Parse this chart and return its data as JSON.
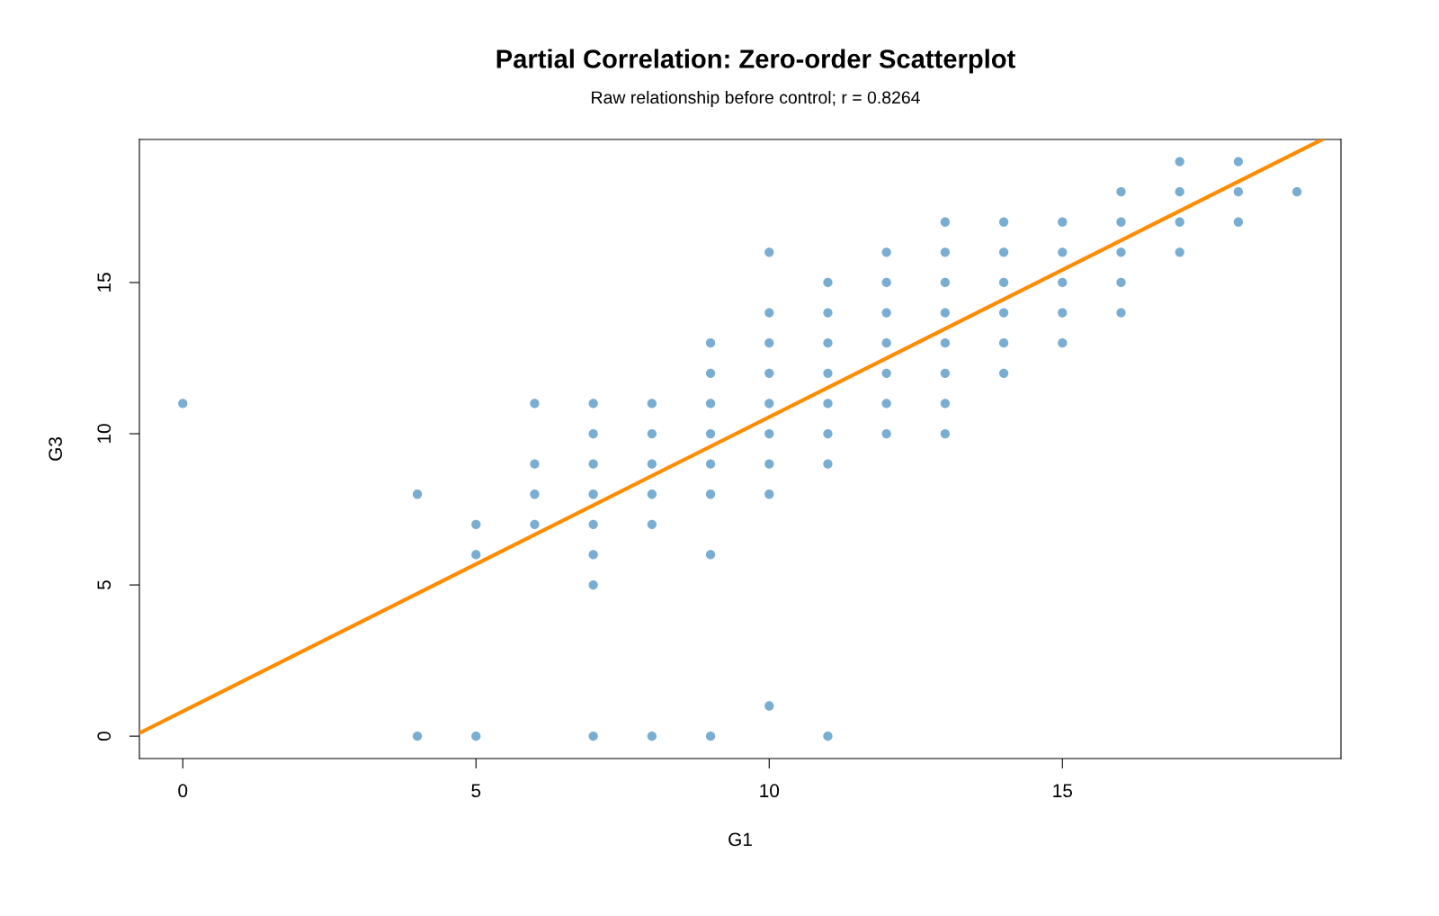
{
  "chart_data": {
    "type": "scatter",
    "title": "Partial Correlation: Zero-order Scatterplot",
    "subtitle": "Raw relationship before control; r = 0.8264",
    "xlabel": "G1",
    "ylabel": "G3",
    "xlim": [
      -0.74,
      19.75
    ],
    "ylim": [
      -0.74,
      19.73
    ],
    "xticks": [
      0,
      5,
      10,
      15
    ],
    "yticks": [
      0,
      5,
      10,
      15
    ],
    "grid": false,
    "series": [
      {
        "color": "#1f78b4",
        "marker": "circle",
        "x": [
          0,
          4,
          4,
          5,
          5,
          5,
          6,
          6,
          6,
          6,
          7,
          7,
          7,
          7,
          7,
          7,
          7,
          7,
          8,
          8,
          8,
          8,
          8,
          8,
          9,
          9,
          9,
          9,
          9,
          9,
          9,
          9,
          10,
          10,
          10,
          10,
          10,
          10,
          10,
          10,
          10,
          11,
          11,
          11,
          11,
          11,
          11,
          11,
          11,
          12,
          12,
          12,
          12,
          12,
          12,
          12,
          13,
          13,
          13,
          13,
          13,
          13,
          13,
          13,
          14,
          14,
          14,
          14,
          14,
          14,
          15,
          15,
          15,
          15,
          15,
          16,
          16,
          16,
          16,
          16,
          17,
          17,
          17,
          17,
          18,
          18,
          18,
          19
        ],
        "values": [
          11,
          8,
          0,
          7,
          6,
          0,
          11,
          9,
          8,
          7,
          11,
          10,
          9,
          8,
          7,
          6,
          5,
          0,
          11,
          10,
          9,
          8,
          7,
          0,
          13,
          12,
          11,
          10,
          9,
          8,
          6,
          0,
          16,
          14,
          13,
          12,
          11,
          10,
          9,
          8,
          1,
          15,
          14,
          13,
          12,
          11,
          10,
          9,
          0,
          16,
          15,
          14,
          13,
          12,
          11,
          10,
          17,
          16,
          15,
          14,
          13,
          12,
          11,
          10,
          17,
          16,
          15,
          14,
          13,
          12,
          17,
          16,
          15,
          14,
          13,
          18,
          17,
          16,
          15,
          14,
          19,
          18,
          17,
          16,
          19,
          18,
          17,
          18
        ]
      },
      {
        "type": "line",
        "color": "#ff8c00",
        "x": [
          -0.74,
          19.43
        ],
        "values": [
          0.1,
          19.73
        ],
        "line_style": "solid"
      }
    ]
  }
}
